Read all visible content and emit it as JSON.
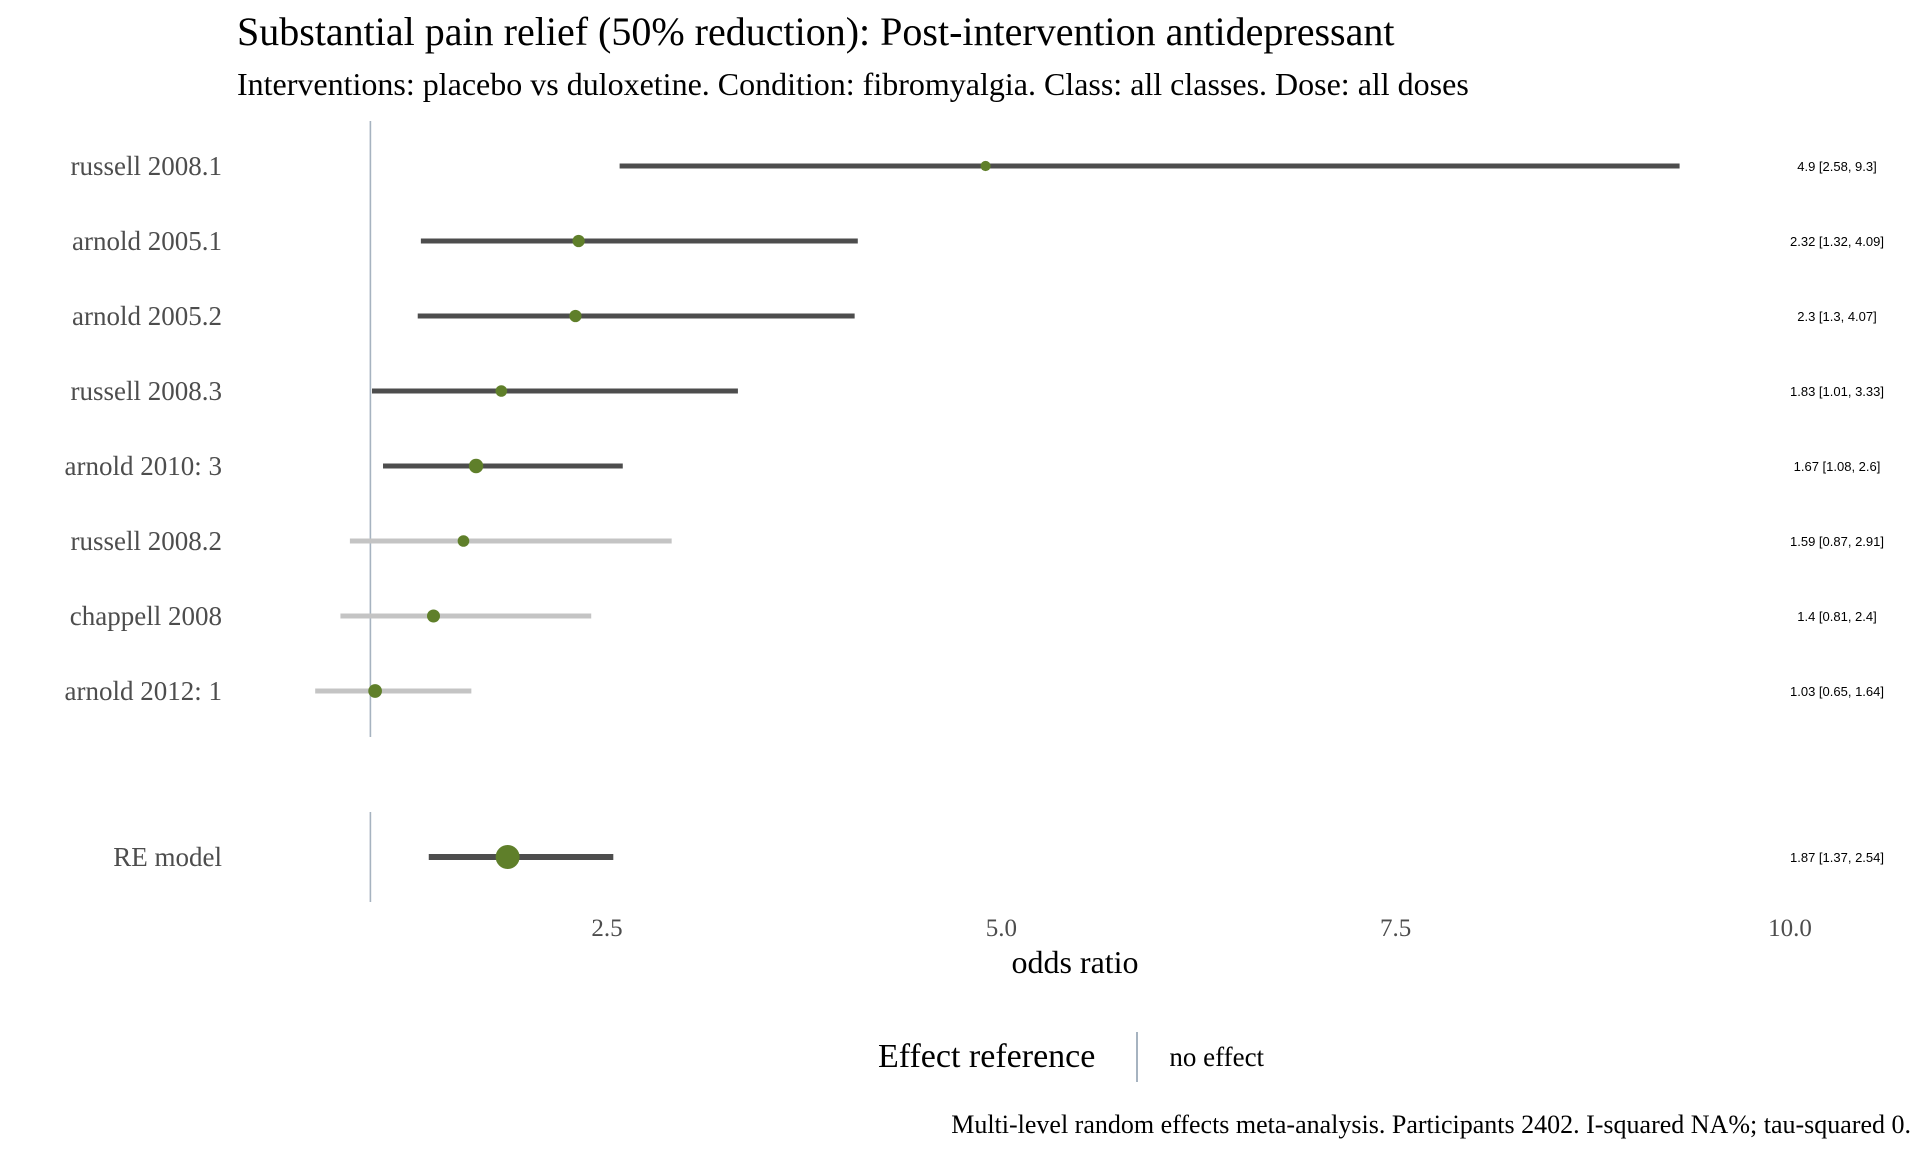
{
  "title": "Substantial pain relief (50% reduction): Post-intervention antidepressant",
  "subtitle": "Interventions: placebo vs duloxetine. Condition: fibromyalgia. Class: all classes. Dose: all doses",
  "caption": "Multi-level random effects meta-analysis. Participants 2402. I-squared NA%; tau-squared 0.",
  "legend": {
    "title": "Effect reference",
    "label": "no effect"
  },
  "colors": {
    "point": "#5f7f2a",
    "significant_line": "#4d4d4d",
    "nonsignificant_line": "#c4c4c4",
    "reference_line": "#a6b3c0"
  },
  "chart_data": {
    "type": "forest",
    "title": "Substantial pain relief (50% reduction): Post-intervention antidepressant",
    "subtitle": "Interventions: placebo vs duloxetine. Condition: fibromyalgia. Class: all classes. Dose: all doses",
    "xlabel": "odds ratio",
    "reference_value": 1,
    "xticks": [
      2.5,
      5.0,
      7.5,
      10.0
    ],
    "xtick_labels": [
      "2.5",
      "5.0",
      "7.5",
      "10.0"
    ],
    "studies": [
      {
        "name": "russell 2008.1",
        "or": 4.9,
        "lower": 2.58,
        "upper": 9.3,
        "label": "4.9 [2.58, 9.3]",
        "weight": 0.6,
        "significant": true
      },
      {
        "name": "arnold 2005.1",
        "or": 2.32,
        "lower": 1.32,
        "upper": 4.09,
        "label": "2.32 [1.32, 4.09]",
        "weight": 0.9,
        "significant": true
      },
      {
        "name": "arnold 2005.2",
        "or": 2.3,
        "lower": 1.3,
        "upper": 4.07,
        "label": "2.3 [1.3, 4.07]",
        "weight": 0.9,
        "significant": true
      },
      {
        "name": "russell 2008.3",
        "or": 1.83,
        "lower": 1.01,
        "upper": 3.33,
        "label": "1.83 [1.01, 3.33]",
        "weight": 0.8,
        "significant": true
      },
      {
        "name": "arnold 2010: 3",
        "or": 1.67,
        "lower": 1.08,
        "upper": 2.6,
        "label": "1.67 [1.08, 2.6]",
        "weight": 1.2,
        "significant": true
      },
      {
        "name": "russell 2008.2",
        "or": 1.59,
        "lower": 0.87,
        "upper": 2.91,
        "label": "1.59 [0.87, 2.91]",
        "weight": 0.8,
        "significant": false
      },
      {
        "name": "chappell 2008",
        "or": 1.4,
        "lower": 0.81,
        "upper": 2.4,
        "label": "1.4 [0.81, 2.4]",
        "weight": 1.0,
        "significant": false
      },
      {
        "name": "arnold 2012: 1",
        "or": 1.03,
        "lower": 0.65,
        "upper": 1.64,
        "label": "1.03 [0.65, 1.64]",
        "weight": 1.1,
        "significant": false
      }
    ],
    "summary": {
      "name": "RE model",
      "or": 1.87,
      "lower": 1.37,
      "upper": 2.54,
      "label": "1.87 [1.37, 2.54]",
      "significant": true
    },
    "legend_placement": "bottom",
    "grid": false
  }
}
